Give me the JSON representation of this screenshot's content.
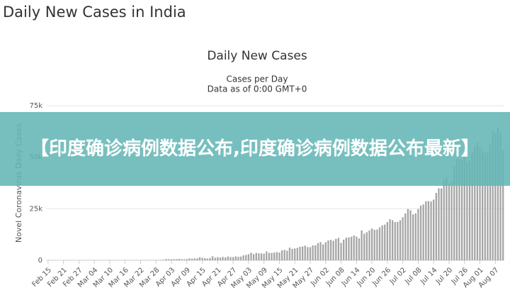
{
  "page_title": "Daily New Cases in India",
  "banner": "【印度确诊病例数据公布,印度确诊病例数据公布最新】",
  "chart_data": {
    "type": "bar",
    "title": "Daily New Cases",
    "subtitle": [
      "Cases per Day",
      "Data as of 0:00 GMT+0"
    ],
    "y_label": "Novel Coronavirus Daily Cases",
    "color": "#a6a6a6",
    "grid": true,
    "ylim": [
      0,
      75000
    ],
    "yticks": [
      0,
      {
        "value": 25000,
        "label": "25k"
      },
      {
        "value": 50000,
        "label": "50k"
      },
      {
        "value": 75000,
        "label": "75k"
      }
    ],
    "categories": [
      "Feb 15",
      null,
      null,
      null,
      null,
      null,
      "Feb 21",
      null,
      null,
      null,
      null,
      null,
      "Feb 27",
      null,
      null,
      null,
      null,
      null,
      "Mar 04",
      null,
      null,
      null,
      null,
      null,
      "Mar 10",
      null,
      null,
      null,
      null,
      null,
      "Mar 16",
      null,
      null,
      null,
      null,
      null,
      "Mar 22",
      null,
      null,
      null,
      null,
      null,
      "Mar 28",
      null,
      null,
      null,
      null,
      null,
      "Apr 03",
      null,
      null,
      null,
      null,
      null,
      "Apr 09",
      null,
      null,
      null,
      null,
      null,
      "Apr 15",
      null,
      null,
      null,
      null,
      null,
      "Apr 21",
      null,
      null,
      null,
      null,
      null,
      "Apr 27",
      null,
      null,
      null,
      null,
      null,
      "May 03",
      null,
      null,
      null,
      null,
      null,
      "May 09",
      null,
      null,
      null,
      null,
      null,
      "May 15",
      null,
      null,
      null,
      null,
      null,
      "May 21",
      null,
      null,
      null,
      null,
      null,
      "May 27",
      null,
      null,
      null,
      null,
      null,
      "Jun 02",
      null,
      null,
      null,
      null,
      null,
      "Jun 08",
      null,
      null,
      null,
      null,
      null,
      "Jun 14",
      null,
      null,
      null,
      null,
      null,
      "Jun 20",
      null,
      null,
      null,
      null,
      null,
      "Jun 26",
      null,
      null,
      null,
      null,
      null,
      "Jul 02",
      null,
      null,
      null,
      null,
      null,
      "Jul 08",
      null,
      null,
      null,
      null,
      null,
      "Jul 14",
      null,
      null,
      null,
      null,
      null,
      "Jul 20",
      null,
      null,
      null,
      null,
      null,
      "Jul 26",
      null,
      null,
      null,
      null,
      null,
      "Aug 01",
      null,
      null,
      null,
      null,
      null,
      "Aug 07",
      null,
      null,
      null
    ],
    "values": [
      0,
      0,
      0,
      0,
      0,
      0,
      0,
      0,
      0,
      0,
      0,
      0,
      0,
      0,
      0,
      0,
      2,
      1,
      22,
      2,
      1,
      3,
      5,
      9,
      15,
      8,
      13,
      9,
      11,
      10,
      14,
      20,
      25,
      27,
      58,
      78,
      69,
      94,
      74,
      86,
      73,
      153,
      136,
      120,
      187,
      309,
      601,
      545,
      478,
      525,
      505,
      704,
      508,
      485,
      591,
      896,
      768,
      918,
      905,
      1463,
      1248,
      1034,
      835,
      1108,
      1893,
      1239,
      1537,
      1292,
      1667,
      1408,
      1835,
      1607,
      1568,
      1902,
      1705,
      1801,
      2396,
      2564,
      2952,
      3656,
      2971,
      3602,
      3344,
      3339,
      3175,
      4311,
      3592,
      3562,
      3726,
      3967,
      3787,
      4864,
      5050,
      4630,
      6147,
      5553,
      5720,
      6023,
      6536,
      6665,
      7113,
      6414,
      6387,
      7246,
      7254,
      8336,
      8782,
      7723,
      8821,
      9633,
      9889,
      9471,
      10408,
      10882,
      8442,
      9987,
      10956,
      11128,
      11458,
      12041,
      11502,
      10667,
      14516,
      12881,
      13586,
      14516,
      15413,
      14821,
      14933,
      15968,
      16922,
      17296,
      18552,
      19906,
      19459,
      18522,
      18653,
      19428,
      20903,
      22771,
      24850,
      24248,
      22252,
      22752,
      24879,
      26506,
      27114,
      28637,
      28701,
      28498,
      29429,
      32695,
      34956,
      34884,
      38902,
      40425,
      37148,
      37724,
      45720,
      49310,
      48916,
      48661,
      49931,
      47704,
      48513,
      52123,
      55078,
      57118,
      54735,
      52972,
      52050,
      52509,
      56282,
      62538,
      61537,
      64399,
      62064,
      53601
    ]
  }
}
